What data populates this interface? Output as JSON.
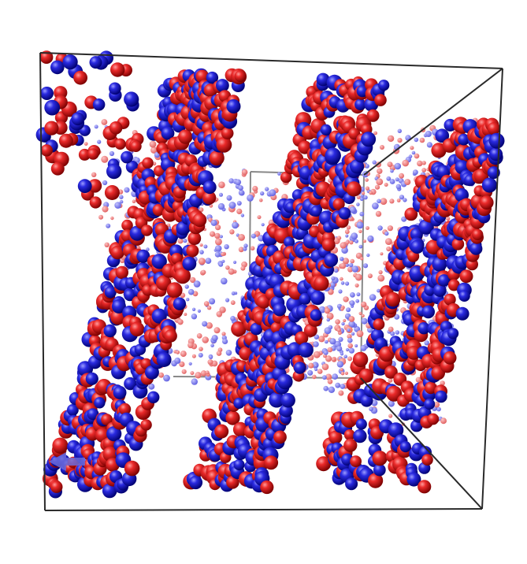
{
  "scene": {
    "description_visible_text": "",
    "colors": {
      "background": "#ffffff",
      "box_edge": "#2a2a2a",
      "atom_red": "#e01818",
      "atom_blue": "#2222cc",
      "axis_arrow": "#6a6ad8"
    },
    "atom_species": [
      {
        "name": "red-atom",
        "color": "#e01818"
      },
      {
        "name": "blue-atom",
        "color": "#2222cc"
      }
    ],
    "features": {
      "simulation_box": true,
      "stripe_count": 3,
      "axis_indicator": "bottom-left"
    }
  }
}
